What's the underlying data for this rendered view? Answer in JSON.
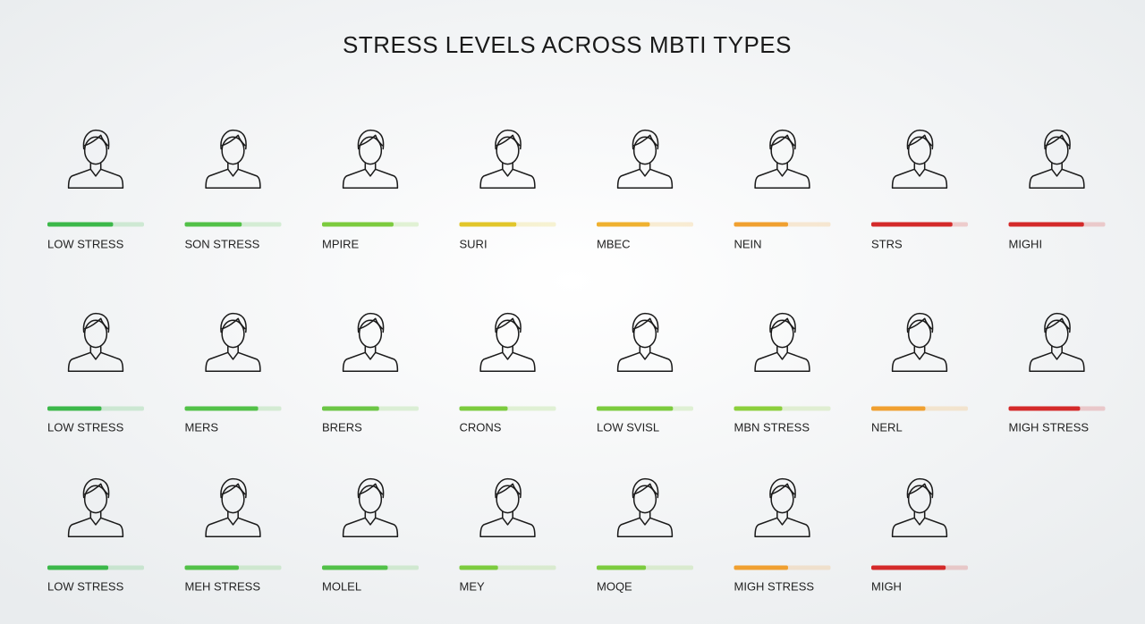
{
  "title": "STRESS LEVELS ACROSS MBTI TYPES",
  "rows": [
    [
      {
        "label": "LOW STRESS",
        "level": 68,
        "color": "#3cb84a"
      },
      {
        "label": "SON STRESS",
        "level": 59,
        "color": "#52c148"
      },
      {
        "label": "MPIRE",
        "level": 74,
        "color": "#7ccb3e"
      },
      {
        "label": "SURI",
        "level": 59,
        "color": "#e2c62a"
      },
      {
        "label": "MBEC",
        "level": 55,
        "color": "#efb130"
      },
      {
        "label": "NEIN",
        "level": 56,
        "color": "#f0a030"
      },
      {
        "label": "STRS",
        "level": 84,
        "color": "#d42a2a"
      },
      {
        "label": "MIGHI",
        "level": 78,
        "color": "#d42a2a"
      }
    ],
    [
      {
        "label": "LOW STRESS",
        "level": 56,
        "color": "#3cb84a"
      },
      {
        "label": "MERS",
        "level": 76,
        "color": "#52c148"
      },
      {
        "label": "BRERS",
        "level": 59,
        "color": "#6cc646"
      },
      {
        "label": "CRONS",
        "level": 50,
        "color": "#7ccb3e"
      },
      {
        "label": "LOW SVISL",
        "level": 79,
        "color": "#7ccb3e"
      },
      {
        "label": "MBN STRESS",
        "level": 50,
        "color": "#8ccf3c"
      },
      {
        "label": "NERL",
        "level": 56,
        "color": "#f0a030"
      },
      {
        "label": "MIGH STRESS",
        "level": 74,
        "color": "#d42a2a"
      }
    ],
    [
      {
        "label": "LOW STRESS",
        "level": 63,
        "color": "#3cb84a"
      },
      {
        "label": "MEH STRESS",
        "level": 56,
        "color": "#52c148"
      },
      {
        "label": "MOLEL",
        "level": 68,
        "color": "#52c148"
      },
      {
        "label": "MEY",
        "level": 40,
        "color": "#7ccb3e"
      },
      {
        "label": "MOQE",
        "level": 51,
        "color": "#7ccb3e"
      },
      {
        "label": "MIGH STRESS",
        "level": 56,
        "color": "#f0a030"
      },
      {
        "label": "MIGH",
        "level": 77,
        "color": "#d42a2a"
      }
    ]
  ]
}
